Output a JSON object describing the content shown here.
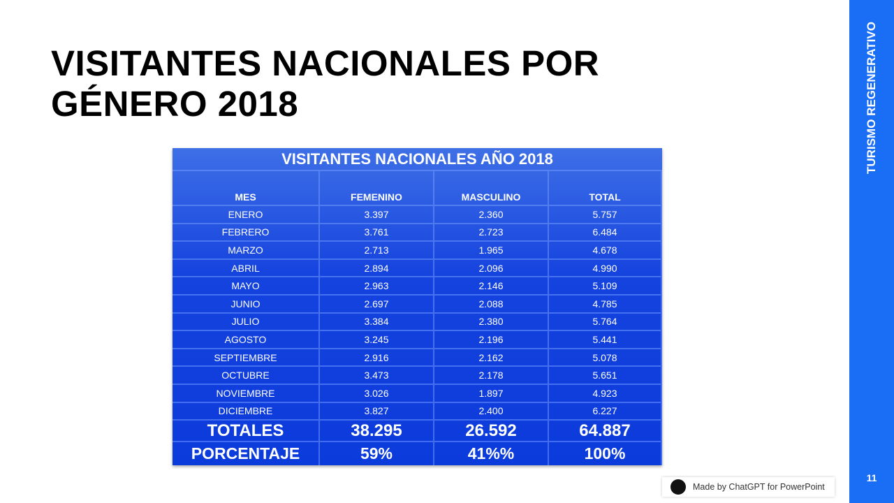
{
  "header": {
    "title_lines": [
      "VISITANTES NACIONALES POR",
      "GÉNERO 2018"
    ]
  },
  "sidebar": {
    "label": "TURISMO REGENERATIVO",
    "page_number": "11"
  },
  "badge": {
    "text": "Made by ChatGPT for PowerPoint"
  },
  "table": {
    "title": "VISITANTES NACIONALES AÑO 2018",
    "header": [
      "MES",
      "FEMENINO",
      "MASCULINO",
      "TOTAL"
    ],
    "rows": [
      [
        "ENERO",
        "3.397",
        "2.360",
        "5.757"
      ],
      [
        "FEBRERO",
        "3.761",
        "2.723",
        "6.484"
      ],
      [
        "MARZO",
        "2.713",
        "1.965",
        "4.678"
      ],
      [
        "ABRIL",
        "2.894",
        "2.096",
        "4.990"
      ],
      [
        "MAYO",
        "2.963",
        "2.146",
        "5.109"
      ],
      [
        "JUNIO",
        "2.697",
        "2.088",
        "4.785"
      ],
      [
        "JULIO",
        "3.384",
        "2.380",
        "5.764"
      ],
      [
        "AGOSTO",
        "3.245",
        "2.196",
        "5.441"
      ],
      [
        "SEPTIEMBRE",
        "2.916",
        "2.162",
        "5.078"
      ],
      [
        "OCTUBRE",
        "3.473",
        "2.178",
        "5.651"
      ],
      [
        "NOVIEMBRE",
        "3.026",
        "1.897",
        "4.923"
      ],
      [
        "DICIEMBRE",
        "3.827",
        "2.400",
        "6.227"
      ]
    ],
    "totals": [
      "TOTALES",
      "38.295",
      "26.592",
      "64.887"
    ],
    "percentages": [
      "PORCENTAJE",
      "59%",
      "41%%",
      "100%"
    ]
  }
}
